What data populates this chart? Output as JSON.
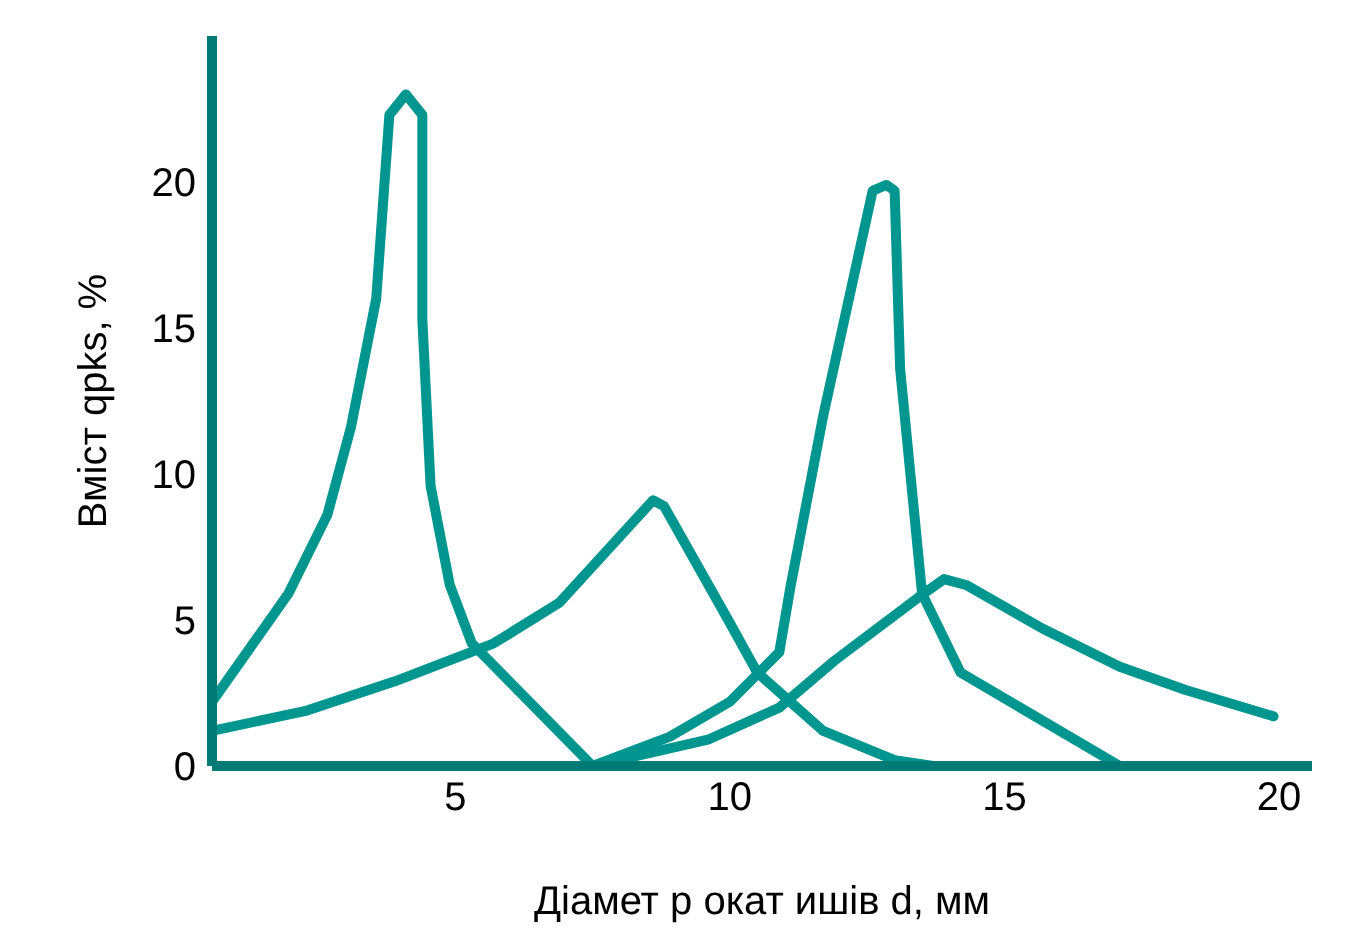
{
  "chart_data": {
    "type": "line",
    "xlabel": "Діамет р окат ишів d, мм",
    "ylabel": "Вміст qpks, %",
    "xlim": [
      0.57,
      20.6
    ],
    "ylim": [
      0,
      25
    ],
    "xticks": [
      5,
      10,
      15,
      20
    ],
    "yticks": [
      0,
      5,
      10,
      15,
      20
    ],
    "grid": false,
    "legend": false,
    "marker": "none",
    "line_style": "solid",
    "series": [
      {
        "color": "#009690",
        "x": [
          0.57,
          1.96,
          2.67,
          3.1,
          3.56,
          3.8,
          4.1,
          4.4,
          4.4,
          4.55,
          4.9,
          5.3,
          7.5
        ],
        "values": [
          2.2,
          5.9,
          8.6,
          11.6,
          16,
          22.3,
          23,
          22.3,
          15.3,
          9.6,
          6.2,
          4.2,
          0
        ]
      },
      {
        "color": "#009690",
        "x": [
          0.57,
          2.3,
          3.9,
          5.7,
          6.9,
          8.6,
          8.8,
          10,
          10.5,
          11.7,
          13,
          13.7
        ],
        "values": [
          1.2,
          1.9,
          2.9,
          4.2,
          5.6,
          9.1,
          8.9,
          4.9,
          3.2,
          1.2,
          0.2,
          0
        ]
      },
      {
        "color": "#009690",
        "x": [
          7.5,
          8.9,
          10,
          10.9,
          11.1,
          11.7,
          12.6,
          12.85,
          13,
          13.1,
          13.5,
          14.2,
          17.1
        ],
        "values": [
          0,
          1,
          2.2,
          3.9,
          6.1,
          12,
          19.7,
          19.9,
          19.7,
          13.6,
          5.9,
          3.2,
          0
        ]
      },
      {
        "color": "#009690",
        "x": [
          7.5,
          9.6,
          10.9,
          11.9,
          13.45,
          13.9,
          14.3,
          15.7,
          17.1,
          18.3,
          19.9
        ],
        "values": [
          0,
          0.9,
          2,
          3.6,
          5.8,
          6.4,
          6.2,
          4.7,
          3.4,
          2.6,
          1.7
        ]
      }
    ]
  }
}
